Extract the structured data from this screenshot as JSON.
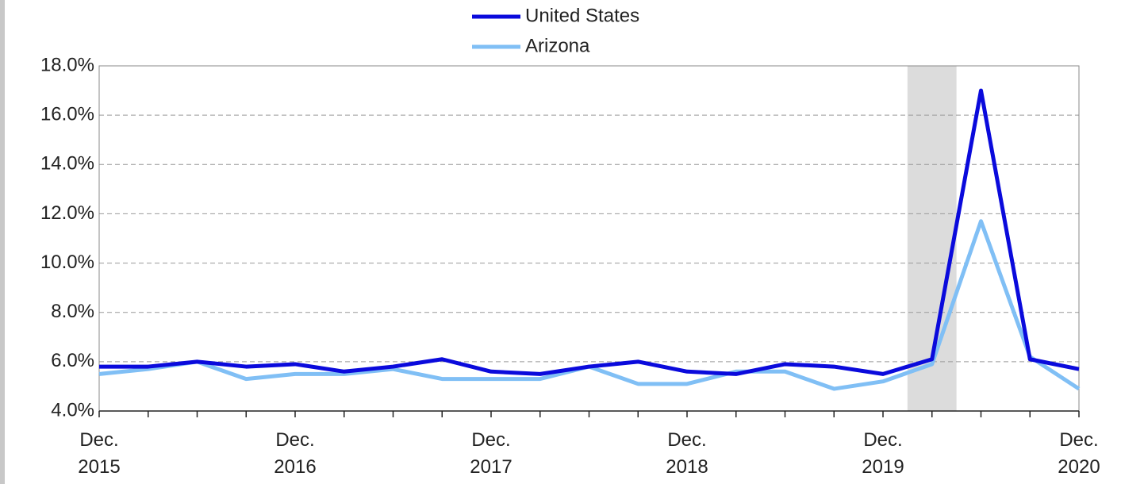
{
  "chart_data": {
    "type": "line",
    "categories": [
      "Dec. 2015",
      null,
      null,
      null,
      "Dec. 2016",
      null,
      null,
      null,
      "Dec. 2017",
      null,
      null,
      null,
      "Dec. 2018",
      null,
      null,
      null,
      "Dec. 2019",
      null,
      null,
      null,
      "Dec. 2020"
    ],
    "series": [
      {
        "name": "United States",
        "color": "#0a0adc",
        "values": [
          5.8,
          5.8,
          6.0,
          5.8,
          5.9,
          5.6,
          5.8,
          6.1,
          5.6,
          5.5,
          5.8,
          6.0,
          5.6,
          5.5,
          5.9,
          5.8,
          5.5,
          6.1,
          17.0,
          6.1,
          5.7
        ]
      },
      {
        "name": "Arizona",
        "color": "#80bff5",
        "values": [
          5.5,
          5.7,
          6.0,
          5.3,
          5.5,
          5.5,
          5.7,
          5.3,
          5.3,
          5.3,
          5.8,
          5.1,
          5.1,
          5.6,
          5.6,
          4.9,
          5.2,
          5.9,
          11.7,
          6.2,
          4.9
        ]
      }
    ],
    "shaded_x_range": [
      16.5,
      17.5
    ],
    "ylim": [
      4,
      18
    ],
    "yticks": [
      {
        "value": 4,
        "label": "4.0%"
      },
      {
        "value": 6,
        "label": "6.0%"
      },
      {
        "value": 8,
        "label": "8.0%"
      },
      {
        "value": 10,
        "label": "10.0%"
      },
      {
        "value": 12,
        "label": "12.0%"
      },
      {
        "value": 14,
        "label": "14.0%"
      },
      {
        "value": 16,
        "label": "16.0%"
      },
      {
        "value": 18,
        "label": "18.0%"
      }
    ],
    "grid": true,
    "legend": "top"
  }
}
